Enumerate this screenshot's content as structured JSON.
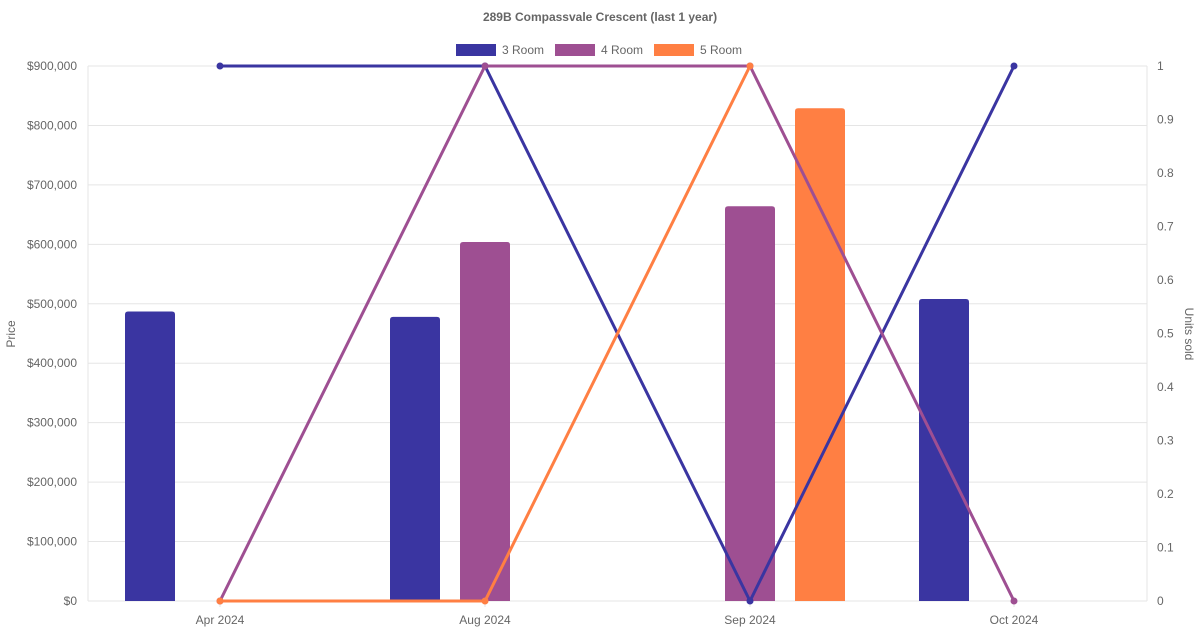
{
  "chart_data": {
    "type": "bar",
    "title": "289B Compassvale Crescent (last 1 year)",
    "categories": [
      "Apr 2024",
      "Aug 2024",
      "Sep 2024",
      "Oct 2024"
    ],
    "ylabel": "Price",
    "y2label": "Units sold",
    "ylim": [
      0,
      900000
    ],
    "y2lim": [
      0,
      1
    ],
    "yticks": [
      "$0",
      "$100,000",
      "$200,000",
      "$300,000",
      "$400,000",
      "$500,000",
      "$600,000",
      "$700,000",
      "$800,000",
      "$900,000"
    ],
    "y2ticks": [
      "0",
      "0.1",
      "0.2",
      "0.3",
      "0.4",
      "0.5",
      "0.6",
      "0.7",
      "0.8",
      "0.9",
      "1"
    ],
    "legend_position": "top",
    "series": [
      {
        "name": "3 Room",
        "color": "#3a35a1",
        "price": [
          487000,
          478000,
          null,
          508000
        ],
        "units": [
          1,
          1,
          0,
          1
        ]
      },
      {
        "name": "4 Room",
        "color": "#9e4f92",
        "price": [
          null,
          604000,
          664000,
          null
        ],
        "units": [
          0,
          1,
          1,
          0
        ]
      },
      {
        "name": "5 Room",
        "color": "#ff7f43",
        "price": [
          null,
          null,
          829000,
          null
        ],
        "units": [
          0,
          0,
          1,
          null
        ]
      }
    ]
  }
}
